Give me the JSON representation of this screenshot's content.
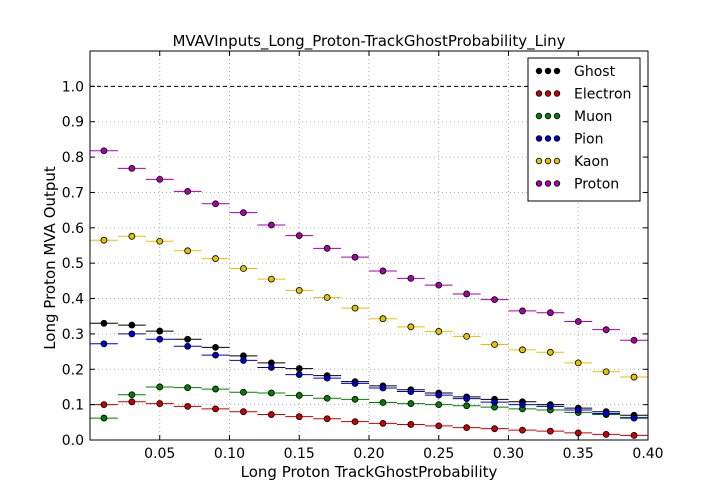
{
  "chart_data": {
    "type": "scatter",
    "title": "MVAVInputs_Long_Proton-TrackGhostProbability_Liny",
    "xlabel": "Long Proton TrackGhostProbability",
    "ylabel": "Long Proton MVA Output",
    "xlim": [
      0.0,
      0.4
    ],
    "ylim": [
      0.0,
      1.1
    ],
    "x_ticks": [
      "0.05",
      "0.10",
      "0.15",
      "0.20",
      "0.25",
      "0.30",
      "0.35",
      "0.40"
    ],
    "y_ticks": [
      "0.0",
      "0.1",
      "0.2",
      "0.3",
      "0.4",
      "0.5",
      "0.6",
      "0.7",
      "0.8",
      "0.9",
      "1.0"
    ],
    "grid": true,
    "legend_position": "top-right",
    "reference_line": {
      "y": 1.0,
      "style": "dashed"
    },
    "bin_width": 0.02,
    "x": [
      0.01,
      0.03,
      0.05,
      0.07,
      0.09,
      0.11,
      0.13,
      0.15,
      0.17,
      0.19,
      0.21,
      0.23,
      0.25,
      0.27,
      0.29,
      0.31,
      0.33,
      0.35,
      0.37,
      0.39
    ],
    "series": [
      {
        "name": "Ghost",
        "color": "#000000",
        "values": [
          0.33,
          0.325,
          0.308,
          0.285,
          0.262,
          0.238,
          0.218,
          0.202,
          0.182,
          0.165,
          0.153,
          0.142,
          0.133,
          0.122,
          0.115,
          0.108,
          0.1,
          0.09,
          0.08,
          0.07
        ]
      },
      {
        "name": "Electron",
        "color": "#cc0000",
        "values": [
          0.1,
          0.108,
          0.103,
          0.095,
          0.088,
          0.08,
          0.072,
          0.066,
          0.06,
          0.052,
          0.047,
          0.044,
          0.04,
          0.035,
          0.032,
          0.028,
          0.025,
          0.02,
          0.016,
          0.013
        ]
      },
      {
        "name": "Muon",
        "color": "#008000",
        "values": [
          0.062,
          0.128,
          0.15,
          0.148,
          0.144,
          0.135,
          0.133,
          0.126,
          0.118,
          0.115,
          0.106,
          0.103,
          0.1,
          0.097,
          0.093,
          0.088,
          0.085,
          0.078,
          0.072,
          0.064
        ]
      },
      {
        "name": "Pion",
        "color": "#0000cc",
        "values": [
          0.272,
          0.3,
          0.285,
          0.265,
          0.24,
          0.225,
          0.205,
          0.185,
          0.175,
          0.16,
          0.147,
          0.137,
          0.127,
          0.117,
          0.107,
          0.1,
          0.095,
          0.085,
          0.075,
          0.062
        ]
      },
      {
        "name": "Kaon",
        "color": "#e6c200",
        "values": [
          0.565,
          0.576,
          0.562,
          0.535,
          0.513,
          0.485,
          0.455,
          0.423,
          0.403,
          0.373,
          0.343,
          0.32,
          0.307,
          0.293,
          0.27,
          0.255,
          0.248,
          0.218,
          0.193,
          0.178
        ]
      },
      {
        "name": "Proton",
        "color": "#aa00aa",
        "values": [
          0.818,
          0.768,
          0.737,
          0.703,
          0.668,
          0.643,
          0.608,
          0.578,
          0.542,
          0.517,
          0.478,
          0.457,
          0.438,
          0.413,
          0.397,
          0.365,
          0.36,
          0.335,
          0.312,
          0.282
        ]
      }
    ]
  }
}
